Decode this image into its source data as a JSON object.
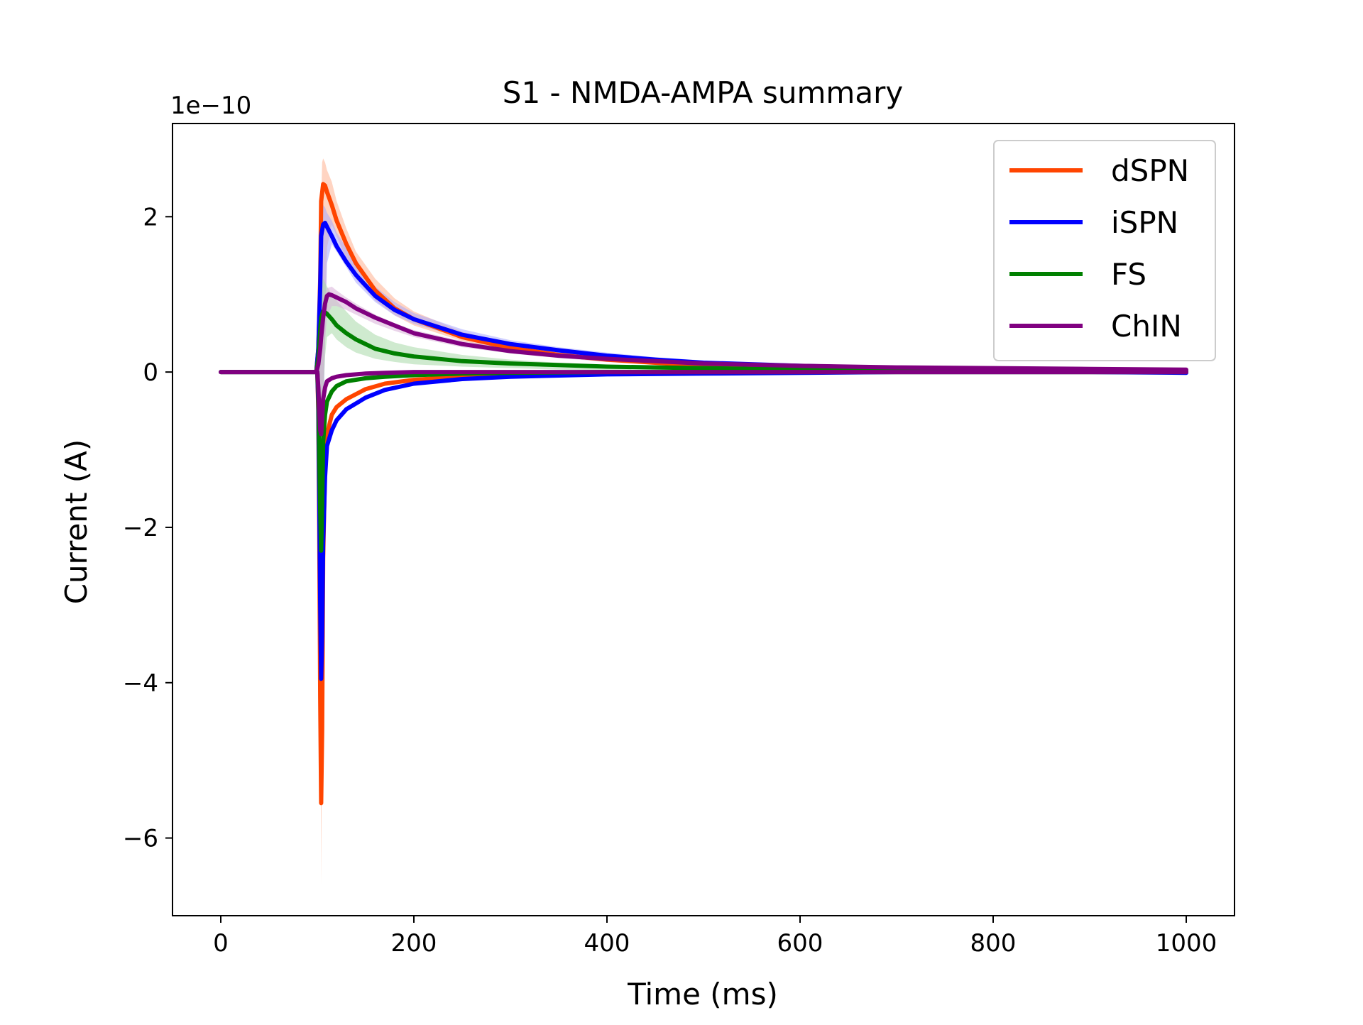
{
  "chart_data": {
    "type": "line",
    "title": "S1 - NMDA-AMPA summary",
    "xlabel": "Time (ms)",
    "ylabel": "Current (A)",
    "y_offset_label": "1e−10",
    "xlim": [
      -50,
      1050
    ],
    "ylim": [
      -7.0,
      3.2
    ],
    "xticks": [
      0,
      200,
      400,
      600,
      800,
      1000
    ],
    "xtick_labels": [
      "0",
      "200",
      "400",
      "600",
      "800",
      "1000"
    ],
    "yticks": [
      -6,
      -4,
      -2,
      0,
      2
    ],
    "ytick_labels": [
      "−6",
      "−4",
      "−2",
      "0",
      "2"
    ],
    "grid": false,
    "legend_position": "top-right",
    "units_note": "y values in units of 1e-10 A",
    "series": [
      {
        "name": "dSPN",
        "color": "#ff4500",
        "band_color": "#ffb090",
        "x": [
          0,
          50,
          99,
          101,
          103,
          104,
          105,
          106,
          108,
          110,
          115,
          120,
          130,
          140,
          160,
          180,
          200,
          250,
          300,
          350,
          400,
          450,
          500,
          600,
          700,
          800,
          900,
          1000
        ],
        "upper": [
          0.0,
          0.0,
          0.0,
          0.2,
          0.8,
          2.2,
          2.7,
          2.75,
          2.7,
          2.6,
          2.45,
          2.2,
          1.85,
          1.55,
          1.2,
          0.95,
          0.78,
          0.52,
          0.36,
          0.26,
          0.19,
          0.14,
          0.1,
          0.06,
          0.04,
          0.03,
          0.02,
          0.02
        ],
        "lower": [
          0.0,
          0.0,
          0.0,
          -0.5,
          -3.5,
          -6.6,
          -4.2,
          -0.5,
          0.4,
          1.6,
          1.9,
          1.75,
          1.45,
          1.2,
          0.92,
          0.73,
          0.6,
          0.4,
          0.27,
          0.19,
          0.13,
          0.09,
          0.06,
          0.03,
          0.02,
          0.01,
          0.0,
          0.0
        ],
        "components": [
          {
            "x": [
              0,
              50,
              99,
              100,
              101,
              102,
              103,
              104,
              105,
              106,
              108,
              110,
              115,
              120,
              130,
              150,
              170,
              200,
              250,
              300,
              400,
              500,
              600,
              700,
              800,
              900,
              1000
            ],
            "y": [
              0.0,
              0.0,
              0.0,
              0.0,
              -0.5,
              -2.0,
              -4.2,
              -5.55,
              -4.6,
              -2.4,
              -1.2,
              -0.8,
              -0.55,
              -0.45,
              -0.35,
              -0.22,
              -0.15,
              -0.1,
              -0.06,
              -0.04,
              -0.02,
              -0.01,
              0.0,
              0.0,
              0.0,
              0.0,
              0.0
            ]
          },
          {
            "x": [
              99,
              101,
              103,
              104,
              106,
              108,
              110,
              115,
              120,
              130,
              140,
              160,
              180,
              200,
              250,
              300,
              350,
              400,
              450,
              500,
              600,
              700,
              800,
              900,
              1000
            ],
            "y": [
              0.0,
              0.3,
              1.2,
              2.2,
              2.42,
              2.4,
              2.32,
              2.15,
              1.95,
              1.65,
              1.4,
              1.05,
              0.82,
              0.68,
              0.45,
              0.31,
              0.22,
              0.16,
              0.12,
              0.08,
              0.05,
              0.03,
              0.02,
              0.01,
              0.01
            ]
          }
        ]
      },
      {
        "name": "iSPN",
        "color": "#0000ff",
        "band_color": "#a8a8ff",
        "x": [
          0,
          50,
          99,
          101,
          103,
          104,
          105,
          106,
          108,
          110,
          115,
          120,
          130,
          140,
          160,
          180,
          200,
          250,
          300,
          350,
          400,
          450,
          500,
          600,
          700,
          800,
          900,
          1000
        ],
        "upper": [
          0.0,
          0.0,
          0.0,
          0.2,
          0.9,
          1.8,
          2.1,
          2.15,
          2.12,
          2.05,
          1.95,
          1.8,
          1.6,
          1.38,
          1.1,
          0.9,
          0.76,
          0.55,
          0.41,
          0.32,
          0.25,
          0.19,
          0.15,
          0.1,
          0.06,
          0.04,
          0.03,
          0.02
        ],
        "lower": [
          0.0,
          0.0,
          0.0,
          -0.4,
          -2.2,
          -4.05,
          -3.0,
          -0.8,
          0.4,
          1.4,
          1.65,
          1.55,
          1.35,
          1.15,
          0.9,
          0.73,
          0.62,
          0.44,
          0.32,
          0.24,
          0.18,
          0.13,
          0.1,
          0.06,
          0.03,
          0.02,
          0.01,
          0.0
        ],
        "components": [
          {
            "x": [
              0,
              50,
              99,
              100,
              101,
              102,
              103,
              104,
              105,
              106,
              108,
              110,
              115,
              120,
              130,
              150,
              170,
              200,
              250,
              300,
              400,
              500,
              600,
              700,
              800,
              900,
              1000
            ],
            "y": [
              0.0,
              0.0,
              0.0,
              0.0,
              -0.4,
              -1.6,
              -3.0,
              -3.95,
              -3.4,
              -2.2,
              -1.35,
              -0.95,
              -0.75,
              -0.62,
              -0.48,
              -0.33,
              -0.23,
              -0.15,
              -0.09,
              -0.06,
              -0.03,
              -0.02,
              -0.01,
              0.0,
              0.0,
              0.0,
              -0.01
            ]
          },
          {
            "x": [
              99,
              101,
              103,
              104,
              106,
              108,
              110,
              115,
              120,
              130,
              140,
              160,
              180,
              200,
              250,
              300,
              350,
              400,
              450,
              500,
              600,
              700,
              800,
              900,
              1000
            ],
            "y": [
              0.0,
              0.3,
              1.1,
              1.75,
              1.9,
              1.92,
              1.87,
              1.75,
              1.62,
              1.42,
              1.25,
              0.98,
              0.8,
              0.68,
              0.48,
              0.36,
              0.28,
              0.21,
              0.16,
              0.12,
              0.08,
              0.05,
              0.03,
              0.02,
              0.01
            ]
          }
        ]
      },
      {
        "name": "FS",
        "color": "#008000",
        "band_color": "#a8d8a8",
        "x": [
          0,
          50,
          99,
          101,
          103,
          104,
          105,
          106,
          108,
          110,
          115,
          120,
          130,
          140,
          160,
          180,
          200,
          250,
          300,
          350,
          400,
          450,
          500,
          600,
          700,
          800,
          900,
          1000
        ],
        "upper": [
          0.0,
          0.0,
          0.0,
          0.1,
          0.6,
          1.0,
          1.15,
          1.2,
          1.15,
          1.1,
          1.0,
          0.92,
          0.78,
          0.65,
          0.48,
          0.38,
          0.32,
          0.22,
          0.16,
          0.12,
          0.09,
          0.07,
          0.06,
          0.04,
          0.03,
          0.02,
          0.02,
          0.02
        ],
        "lower": [
          0.0,
          0.0,
          0.0,
          -0.3,
          -1.5,
          -2.35,
          -1.6,
          -0.3,
          0.2,
          0.45,
          0.5,
          0.42,
          0.32,
          0.25,
          0.17,
          0.13,
          0.1,
          0.07,
          0.05,
          0.03,
          0.02,
          0.01,
          0.0,
          -0.01,
          -0.01,
          -0.01,
          -0.01,
          -0.01
        ],
        "components": [
          {
            "x": [
              0,
              50,
              99,
              100,
              101,
              102,
              103,
              104,
              105,
              106,
              108,
              110,
              115,
              120,
              130,
              150,
              170,
              200,
              250,
              300,
              400,
              500,
              600,
              700,
              800,
              900,
              1000
            ],
            "y": [
              0.0,
              0.0,
              0.0,
              0.0,
              -0.3,
              -1.0,
              -1.8,
              -2.3,
              -1.7,
              -0.9,
              -0.55,
              -0.38,
              -0.25,
              -0.18,
              -0.12,
              -0.08,
              -0.06,
              -0.04,
              -0.02,
              -0.01,
              0.0,
              0.0,
              0.0,
              0.0,
              0.0,
              0.0,
              0.0
            ]
          },
          {
            "x": [
              99,
              101,
              103,
              104,
              106,
              108,
              110,
              115,
              120,
              130,
              140,
              160,
              180,
              200,
              250,
              300,
              350,
              400,
              450,
              500,
              600,
              700,
              800,
              900,
              1000
            ],
            "y": [
              0.0,
              0.2,
              0.55,
              0.7,
              0.78,
              0.77,
              0.75,
              0.68,
              0.6,
              0.5,
              0.42,
              0.3,
              0.24,
              0.2,
              0.14,
              0.11,
              0.09,
              0.07,
              0.06,
              0.05,
              0.03,
              0.02,
              0.01,
              0.01,
              0.01
            ]
          }
        ]
      },
      {
        "name": "ChIN",
        "color": "#800080",
        "band_color": "#d8b0d8",
        "x": [
          0,
          50,
          99,
          101,
          103,
          104,
          105,
          106,
          108,
          110,
          115,
          120,
          130,
          140,
          160,
          180,
          200,
          250,
          300,
          350,
          400,
          450,
          500,
          600,
          700,
          800,
          900,
          1000
        ],
        "upper": [
          0.0,
          0.0,
          0.0,
          0.1,
          0.35,
          0.5,
          0.7,
          0.85,
          1.0,
          1.08,
          1.1,
          1.05,
          0.96,
          0.88,
          0.74,
          0.63,
          0.54,
          0.4,
          0.31,
          0.25,
          0.2,
          0.16,
          0.13,
          0.1,
          0.08,
          0.07,
          0.06,
          0.05
        ],
        "lower": [
          0.0,
          0.0,
          0.0,
          -0.2,
          -0.7,
          -0.85,
          -0.6,
          -0.2,
          0.4,
          0.7,
          0.85,
          0.85,
          0.8,
          0.74,
          0.62,
          0.53,
          0.45,
          0.32,
          0.24,
          0.18,
          0.13,
          0.1,
          0.08,
          0.05,
          0.03,
          0.02,
          0.02,
          0.01
        ],
        "components": [
          {
            "x": [
              0,
              50,
              99,
              100,
              101,
              102,
              103,
              104,
              105,
              106,
              108,
              110,
              115,
              120,
              130,
              150,
              170,
              200,
              250,
              300,
              400,
              500,
              600,
              700,
              800,
              900,
              1000
            ],
            "y": [
              0.0,
              0.0,
              0.0,
              0.0,
              -0.2,
              -0.5,
              -0.75,
              -0.8,
              -0.6,
              -0.35,
              -0.2,
              -0.12,
              -0.08,
              -0.06,
              -0.04,
              -0.02,
              -0.01,
              0.0,
              0.0,
              0.0,
              0.0,
              0.0,
              0.0,
              0.0,
              0.0,
              0.0,
              0.0
            ]
          },
          {
            "x": [
              99,
              101,
              103,
              104,
              106,
              108,
              110,
              112,
              115,
              120,
              130,
              140,
              160,
              180,
              200,
              250,
              300,
              350,
              400,
              450,
              500,
              600,
              700,
              800,
              900,
              1000
            ],
            "y": [
              0.0,
              0.1,
              0.3,
              0.45,
              0.7,
              0.88,
              0.98,
              1.0,
              0.99,
              0.96,
              0.9,
              0.82,
              0.7,
              0.6,
              0.5,
              0.36,
              0.27,
              0.21,
              0.17,
              0.14,
              0.11,
              0.08,
              0.06,
              0.05,
              0.04,
              0.03
            ]
          }
        ]
      }
    ]
  }
}
